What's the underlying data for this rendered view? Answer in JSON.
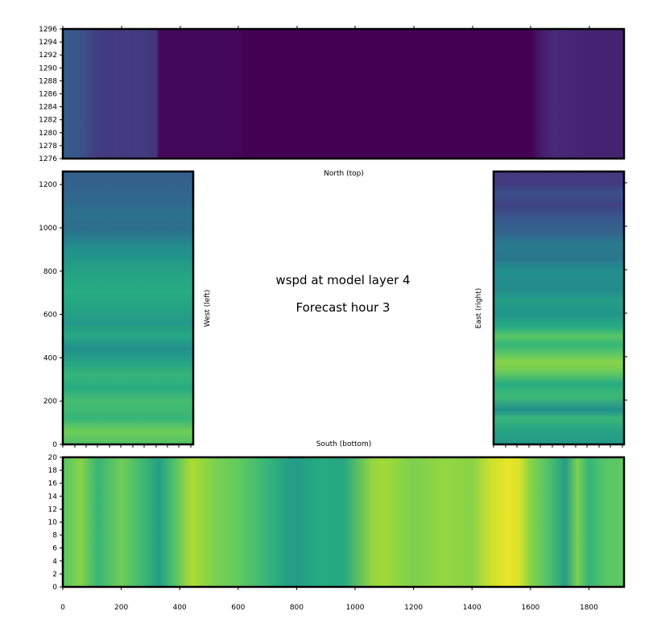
{
  "chart_data": {
    "type": "heatmap",
    "variable": "wspd",
    "title_line1": "wspd at model layer 4",
    "title_line2": "Forecast hour 3",
    "colormap": "viridis",
    "panels": [
      {
        "id": "north",
        "label": "North (top)",
        "x_ticks": [],
        "y_ticks": [
          1276,
          1278,
          1280,
          1282,
          1284,
          1286,
          1288,
          1290,
          1292,
          1294,
          1296
        ],
        "xlim": [
          0,
          1920
        ],
        "ylim": [
          1276,
          1296
        ],
        "column_profile": {
          "x": [
            0,
            60,
            120,
            200,
            280,
            320,
            330,
            600,
            620,
            1100,
            1500,
            1600,
            1640,
            1680,
            1800,
            1920
          ],
          "value": [
            0.3,
            0.26,
            0.18,
            0.17,
            0.18,
            0.15,
            0.02,
            0.02,
            0.0,
            0.0,
            0.0,
            0.0,
            0.08,
            0.12,
            0.1,
            0.1
          ]
        }
      },
      {
        "id": "west",
        "label": "West (left)",
        "x_ticks": [],
        "y_ticks": [
          0,
          200,
          400,
          600,
          800,
          1000,
          1200
        ],
        "xlim": [
          0,
          450
        ],
        "ylim": [
          0,
          1260
        ],
        "row_profile": {
          "y": [
            0,
            60,
            120,
            200,
            260,
            320,
            380,
            440,
            500,
            560,
            620,
            700,
            760,
            820,
            900,
            960,
            1000,
            1060,
            1120,
            1200,
            1260
          ],
          "value": [
            0.72,
            0.78,
            0.66,
            0.7,
            0.62,
            0.66,
            0.58,
            0.5,
            0.6,
            0.54,
            0.58,
            0.62,
            0.6,
            0.56,
            0.5,
            0.42,
            0.36,
            0.38,
            0.34,
            0.32,
            0.3
          ]
        }
      },
      {
        "id": "east",
        "label": "East (right)",
        "x_ticks": [],
        "y_ticks": [],
        "xlim": [
          0,
          450
        ],
        "ylim": [
          0,
          1260
        ],
        "row_profile": {
          "y": [
            0,
            60,
            120,
            160,
            220,
            280,
            340,
            380,
            420,
            460,
            500,
            540,
            600,
            660,
            720,
            800,
            860,
            920,
            980,
            1040,
            1100,
            1160,
            1200,
            1260
          ],
          "value": [
            0.54,
            0.58,
            0.66,
            0.5,
            0.68,
            0.62,
            0.78,
            0.82,
            0.74,
            0.66,
            0.74,
            0.62,
            0.52,
            0.56,
            0.48,
            0.5,
            0.4,
            0.42,
            0.32,
            0.28,
            0.2,
            0.24,
            0.18,
            0.16
          ]
        }
      },
      {
        "id": "south",
        "label": "South (bottom)",
        "x_ticks": [
          0,
          200,
          400,
          600,
          800,
          1000,
          1200,
          1400,
          1600,
          1800
        ],
        "y_ticks": [
          0,
          2,
          4,
          6,
          8,
          10,
          12,
          14,
          16,
          18,
          20
        ],
        "xlim": [
          0,
          1920
        ],
        "ylim": [
          0,
          20
        ],
        "column_profile": {
          "x": [
            0,
            60,
            120,
            200,
            260,
            330,
            380,
            440,
            520,
            600,
            700,
            760,
            800,
            880,
            960,
            1060,
            1100,
            1200,
            1300,
            1400,
            1460,
            1520,
            1560,
            1600,
            1660,
            1720,
            1760,
            1800,
            1860,
            1920
          ],
          "value": [
            0.74,
            0.82,
            0.66,
            0.78,
            0.7,
            0.56,
            0.72,
            0.88,
            0.8,
            0.76,
            0.66,
            0.58,
            0.55,
            0.62,
            0.6,
            0.84,
            0.86,
            0.8,
            0.84,
            0.82,
            0.92,
            0.97,
            0.95,
            0.82,
            0.72,
            0.56,
            0.8,
            0.66,
            0.74,
            0.76
          ]
        }
      }
    ]
  }
}
